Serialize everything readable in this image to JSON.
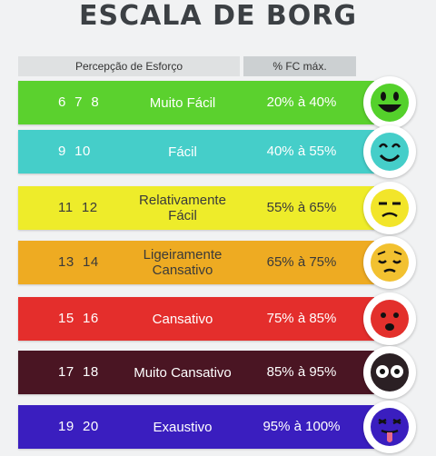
{
  "title": "ESCALA DE BORG",
  "header": {
    "effort": "Percepção de Esforço",
    "hr": "% FC máx."
  },
  "rows": [
    {
      "nums": "6  7  8",
      "label": "Muito Fácil",
      "pct": "20% à 40%",
      "color": "#5bd12e",
      "face": "very-happy-face-icon"
    },
    {
      "nums": "9  10",
      "label": "Fácil",
      "pct": "40% à 55%",
      "color": "#45cec9",
      "face": "smiling-face-icon"
    },
    {
      "nums": "11  12",
      "label": "Relativamente Fácil",
      "pct": "55% à 65%",
      "color": "#eeec2a",
      "face": "unamused-face-icon"
    },
    {
      "nums": "13  14",
      "label": "Ligeiramente Cansativo",
      "pct": "65% à 75%",
      "color": "#eeab22",
      "face": "pensive-face-icon"
    },
    {
      "nums": "15  16",
      "label": "Cansativo",
      "pct": "75% à 85%",
      "color": "#e42e2c",
      "face": "worried-face-icon"
    },
    {
      "nums": "17  18",
      "label": "Muito Cansativo",
      "pct": "85% à 95%",
      "color": "#4a1523",
      "face": "wide-eyed-face-icon"
    },
    {
      "nums": "19  20",
      "label": "Exaustivo",
      "pct": "95% à 100%",
      "color": "#3a1ebf",
      "face": "tongue-out-face-icon"
    }
  ]
}
